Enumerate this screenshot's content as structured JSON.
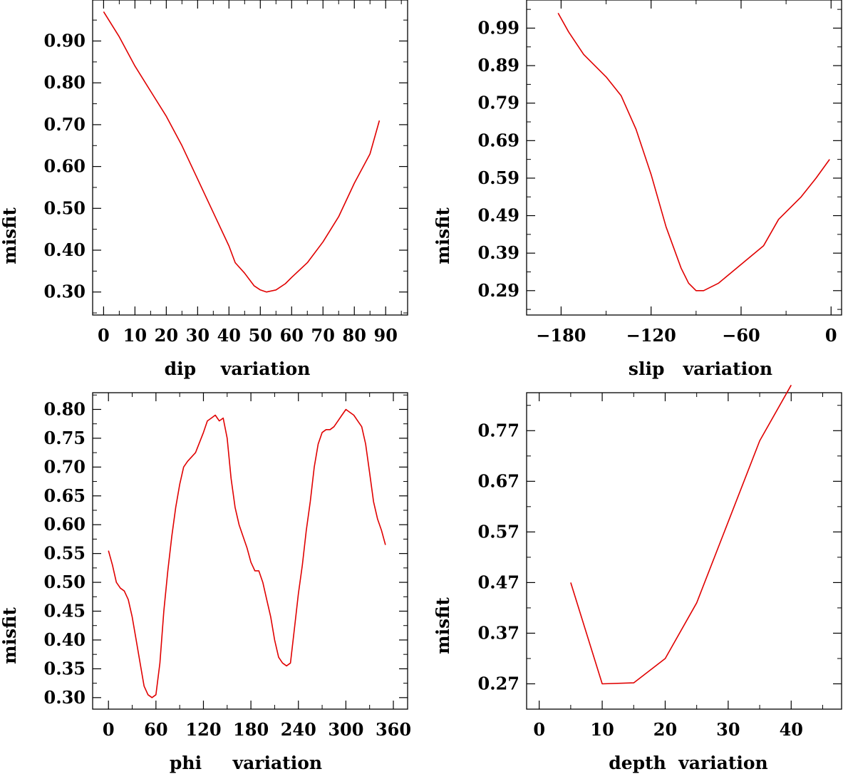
{
  "figure": {
    "line_color": "#e00000",
    "axis_color": "#000000"
  },
  "chart_data": [
    {
      "type": "line",
      "title": "",
      "xlabel": "dip    variation",
      "ylabel": "misfit",
      "xlim": [
        -3.5,
        97
      ],
      "ylim": [
        0.245,
        0.998
      ],
      "xticks": [
        0,
        10,
        20,
        30,
        40,
        50,
        60,
        70,
        80,
        90
      ],
      "xtick_labels": [
        "0",
        "10",
        "20",
        "30",
        "40",
        "50",
        "60",
        "70",
        "80",
        "90"
      ],
      "yticks": [
        0.3,
        0.4,
        0.5,
        0.6,
        0.7,
        0.8,
        0.9
      ],
      "ytick_labels": [
        "0.30",
        "0.40",
        "0.50",
        "0.60",
        "0.70",
        "0.80",
        "0.90"
      ],
      "series": [
        {
          "name": "dip",
          "x": [
            0,
            5,
            10,
            15,
            20,
            25,
            30,
            35,
            40,
            42,
            45,
            48,
            50,
            52,
            55,
            58,
            60,
            65,
            70,
            75,
            80,
            85,
            88
          ],
          "y": [
            0.97,
            0.91,
            0.84,
            0.78,
            0.72,
            0.65,
            0.57,
            0.49,
            0.41,
            0.37,
            0.345,
            0.315,
            0.305,
            0.3,
            0.305,
            0.32,
            0.335,
            0.37,
            0.42,
            0.48,
            0.56,
            0.63,
            0.71
          ]
        }
      ]
    },
    {
      "type": "line",
      "title": "",
      "xlabel": "slip   variation",
      "ylabel": "misfit",
      "xlim": [
        -203,
        7
      ],
      "ylim": [
        0.225,
        1.065
      ],
      "xticks": [
        -180,
        -120,
        -60,
        0
      ],
      "xtick_labels": [
        "−180",
        "−120",
        "−60",
        "0"
      ],
      "yticks": [
        0.29,
        0.39,
        0.49,
        0.59,
        0.69,
        0.79,
        0.89,
        0.99
      ],
      "ytick_labels": [
        "0.29",
        "0.39",
        "0.49",
        "0.59",
        "0.69",
        "0.79",
        "0.89",
        "0.99"
      ],
      "series": [
        {
          "name": "slip",
          "x": [
            -182,
            -175,
            -165,
            -150,
            -140,
            -130,
            -120,
            -110,
            -100,
            -95,
            -90,
            -85,
            -75,
            -60,
            -45,
            -35,
            -20,
            -10,
            -1
          ],
          "y": [
            1.03,
            0.98,
            0.92,
            0.86,
            0.81,
            0.72,
            0.6,
            0.46,
            0.35,
            0.31,
            0.29,
            0.29,
            0.31,
            0.36,
            0.41,
            0.48,
            0.54,
            0.59,
            0.64
          ]
        }
      ]
    },
    {
      "type": "line",
      "title": "",
      "xlabel": "phi     variation",
      "ylabel": "misfit",
      "xlim": [
        -20,
        378
      ],
      "ylim": [
        0.28,
        0.829
      ],
      "xticks": [
        0,
        60,
        120,
        180,
        240,
        300,
        360
      ],
      "xtick_labels": [
        "0",
        "60",
        "120",
        "180",
        "240",
        "300",
        "360"
      ],
      "yticks": [
        0.3,
        0.35,
        0.4,
        0.45,
        0.5,
        0.55,
        0.6,
        0.65,
        0.7,
        0.75,
        0.8
      ],
      "ytick_labels": [
        "0.30",
        "0.35",
        "0.40",
        "0.45",
        "0.50",
        "0.55",
        "0.60",
        "0.65",
        "0.70",
        "0.75",
        "0.80"
      ],
      "series": [
        {
          "name": "phi",
          "x": [
            0,
            5,
            10,
            15,
            20,
            25,
            30,
            35,
            40,
            45,
            50,
            55,
            60,
            65,
            70,
            75,
            80,
            85,
            90,
            95,
            100,
            110,
            120,
            125,
            130,
            135,
            140,
            145,
            150,
            155,
            160,
            165,
            170,
            175,
            180,
            185,
            190,
            195,
            200,
            205,
            210,
            215,
            220,
            225,
            230,
            235,
            240,
            245,
            250,
            255,
            260,
            265,
            270,
            275,
            280,
            285,
            290,
            295,
            300,
            305,
            310,
            315,
            320,
            325,
            330,
            335,
            340,
            345,
            350
          ],
          "y": [
            0.555,
            0.53,
            0.5,
            0.49,
            0.485,
            0.47,
            0.44,
            0.4,
            0.36,
            0.32,
            0.305,
            0.3,
            0.305,
            0.36,
            0.45,
            0.52,
            0.58,
            0.63,
            0.67,
            0.7,
            0.71,
            0.725,
            0.76,
            0.78,
            0.785,
            0.79,
            0.78,
            0.785,
            0.75,
            0.68,
            0.63,
            0.6,
            0.58,
            0.56,
            0.535,
            0.52,
            0.52,
            0.5,
            0.47,
            0.44,
            0.4,
            0.37,
            0.36,
            0.355,
            0.36,
            0.42,
            0.48,
            0.53,
            0.59,
            0.64,
            0.7,
            0.74,
            0.76,
            0.765,
            0.765,
            0.77,
            0.78,
            0.79,
            0.8,
            0.795,
            0.79,
            0.78,
            0.77,
            0.74,
            0.69,
            0.64,
            0.61,
            0.59,
            0.565
          ]
        }
      ]
    },
    {
      "type": "line",
      "title": "",
      "xlabel": "depth  variation",
      "ylabel": "misfit",
      "xlim": [
        -2,
        48
      ],
      "ylim": [
        0.22,
        0.845
      ],
      "xticks": [
        0,
        10,
        20,
        30,
        40
      ],
      "xtick_labels": [
        "0",
        "10",
        "20",
        "30",
        "40"
      ],
      "yticks": [
        0.27,
        0.37,
        0.47,
        0.57,
        0.67,
        0.77
      ],
      "ytick_labels": [
        "0.27",
        "0.37",
        "0.47",
        "0.57",
        "0.67",
        "0.77"
      ],
      "series": [
        {
          "name": "depth",
          "x": [
            5,
            10,
            15,
            20,
            25,
            30,
            35,
            40
          ],
          "y": [
            0.47,
            0.27,
            0.272,
            0.32,
            0.43,
            0.59,
            0.75,
            0.86
          ]
        }
      ]
    }
  ]
}
